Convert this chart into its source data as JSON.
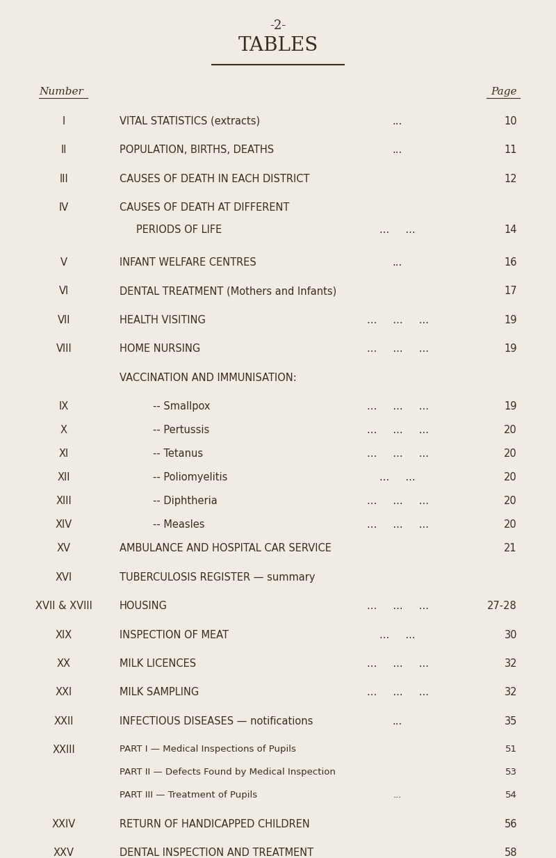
{
  "bg_color": "#f0ece4",
  "text_color": "#3d2b1f",
  "page_num": "-2-",
  "title": "TABLES",
  "col_number_label": "Number",
  "col_page_label": "Page",
  "entries": [
    {
      "number": "I",
      "desc1": "VITAL STATISTICS (extracts)",
      "desc2": "",
      "desc3": "",
      "dots1": "...",
      "dots2": "",
      "dots3": "",
      "page1": "10",
      "page2": "",
      "page3": "",
      "indent": 0,
      "group": false
    },
    {
      "number": "II",
      "desc1": "POPULATION, BIRTHS, DEATHS",
      "desc2": "",
      "desc3": "",
      "dots1": "...",
      "dots2": "",
      "dots3": "",
      "page1": "11",
      "page2": "",
      "page3": "",
      "indent": 0,
      "group": false
    },
    {
      "number": "III",
      "desc1": "CAUSES OF DEATH IN EACH DISTRICT",
      "desc2": "",
      "desc3": "",
      "dots1": "",
      "dots2": "",
      "dots3": "",
      "page1": "12",
      "page2": "",
      "page3": "",
      "indent": 0,
      "group": false
    },
    {
      "number": "IV",
      "desc1": "CAUSES OF DEATH AT DIFFERENT",
      "desc2": "PERIODS OF LIFE",
      "desc3": "",
      "dots1": "",
      "dots2": "...     ...",
      "dots3": "",
      "page1": "",
      "page2": "14",
      "page3": "",
      "indent": 0,
      "group": false
    },
    {
      "number": "V",
      "desc1": "INFANT WELFARE CENTRES",
      "desc2": "",
      "desc3": "",
      "dots1": "...",
      "dots2": "",
      "dots3": "",
      "page1": "16",
      "page2": "",
      "page3": "",
      "indent": 0,
      "group": false
    },
    {
      "number": "VI",
      "desc1": "DENTAL TREATMENT (Mothers and Infants)",
      "desc2": "",
      "desc3": "",
      "dots1": "",
      "dots2": "",
      "dots3": "",
      "page1": "17",
      "page2": "",
      "page3": "",
      "indent": 0,
      "group": false
    },
    {
      "number": "VII",
      "desc1": "HEALTH VISITING",
      "desc2": "",
      "desc3": "",
      "dots1": "...     ...     ...",
      "dots2": "",
      "dots3": "",
      "page1": "19",
      "page2": "",
      "page3": "",
      "indent": 0,
      "group": false
    },
    {
      "number": "VIII",
      "desc1": "HOME NURSING",
      "desc2": "",
      "desc3": "",
      "dots1": "...     ...     ...",
      "dots2": "",
      "dots3": "",
      "page1": "19",
      "page2": "",
      "page3": "",
      "indent": 0,
      "group": false
    },
    {
      "number": "",
      "desc1": "VACCINATION AND IMMUNISATION:",
      "desc2": "",
      "desc3": "",
      "dots1": "",
      "dots2": "",
      "dots3": "",
      "page1": "",
      "page2": "",
      "page3": "",
      "indent": 0,
      "group": false
    },
    {
      "number": "IX",
      "desc1": "-- Smallpox",
      "desc2": "",
      "desc3": "",
      "dots1": "...     ...     ...",
      "dots2": "",
      "dots3": "",
      "page1": "19",
      "page2": "",
      "page3": "",
      "indent": 1,
      "group": true
    },
    {
      "number": "X",
      "desc1": "-- Pertussis",
      "desc2": "",
      "desc3": "",
      "dots1": "...     ...     ...",
      "dots2": "",
      "dots3": "",
      "page1": "20",
      "page2": "",
      "page3": "",
      "indent": 1,
      "group": true
    },
    {
      "number": "XI",
      "desc1": "-- Tetanus",
      "desc2": "",
      "desc3": "",
      "dots1": "...     ...     ...",
      "dots2": "",
      "dots3": "",
      "page1": "20",
      "page2": "",
      "page3": "",
      "indent": 1,
      "group": true
    },
    {
      "number": "XII",
      "desc1": "-- Poliomyelitis",
      "desc2": "",
      "desc3": "",
      "dots1": "...     ...",
      "dots2": "",
      "dots3": "",
      "page1": "20",
      "page2": "",
      "page3": "",
      "indent": 1,
      "group": true
    },
    {
      "number": "XIII",
      "desc1": "-- Diphtheria",
      "desc2": "",
      "desc3": "",
      "dots1": "...     ...     ...",
      "dots2": "",
      "dots3": "",
      "page1": "20",
      "page2": "",
      "page3": "",
      "indent": 1,
      "group": true
    },
    {
      "number": "XIV",
      "desc1": "-- Measles",
      "desc2": "",
      "desc3": "",
      "dots1": "...     ...     ...",
      "dots2": "",
      "dots3": "",
      "page1": "20",
      "page2": "",
      "page3": "",
      "indent": 1,
      "group": true
    },
    {
      "number": "XV",
      "desc1": "AMBULANCE AND HOSPITAL CAR SERVICE",
      "desc2": "",
      "desc3": "",
      "dots1": "",
      "dots2": "",
      "dots3": "",
      "page1": "21",
      "page2": "",
      "page3": "",
      "indent": 0,
      "group": false
    },
    {
      "number": "XVI",
      "desc1": "TUBERCULOSIS REGISTER — summary",
      "desc2": "",
      "desc3": "",
      "dots1": "",
      "dots2": "",
      "dots3": "",
      "page1": "",
      "page2": "",
      "page3": "",
      "indent": 0,
      "group": false
    },
    {
      "number": "XVII & XVIII",
      "desc1": "HOUSING",
      "desc2": "",
      "desc3": "",
      "dots1": "...     ...     ...",
      "dots2": "",
      "dots3": "",
      "page1": "27-28",
      "page2": "",
      "page3": "",
      "indent": 0,
      "group": false
    },
    {
      "number": "XIX",
      "desc1": "INSPECTION OF MEAT",
      "desc2": "",
      "desc3": "",
      "dots1": "...     ...",
      "dots2": "",
      "dots3": "",
      "page1": "30",
      "page2": "",
      "page3": "",
      "indent": 0,
      "group": false
    },
    {
      "number": "XX",
      "desc1": "MILK LICENCES",
      "desc2": "",
      "desc3": "",
      "dots1": "...     ...     ...",
      "dots2": "",
      "dots3": "",
      "page1": "32",
      "page2": "",
      "page3": "",
      "indent": 0,
      "group": false
    },
    {
      "number": "XXI",
      "desc1": "MILK SAMPLING",
      "desc2": "",
      "desc3": "",
      "dots1": "...     ...     ...",
      "dots2": "",
      "dots3": "",
      "page1": "32",
      "page2": "",
      "page3": "",
      "indent": 0,
      "group": false
    },
    {
      "number": "XXII",
      "desc1": "INFECTIOUS DISEASES — notifications",
      "desc2": "",
      "desc3": "",
      "dots1": "...",
      "dots2": "",
      "dots3": "",
      "page1": "35",
      "page2": "",
      "page3": "",
      "indent": 0,
      "group": false
    },
    {
      "number": "XXIII",
      "desc1": "PART I — Medical Inspections of Pupils",
      "desc2": "PART II — Defects Found by Medical Inspection",
      "desc3": "PART III — Treatment of Pupils",
      "dots1": "",
      "dots2": "",
      "dots3": "...",
      "page1": "51",
      "page2": "53",
      "page3": "54",
      "indent": 0,
      "group": false
    },
    {
      "number": "XXIV",
      "desc1": "RETURN OF HANDICAPPED CHILDREN",
      "desc2": "",
      "desc3": "",
      "dots1": "",
      "dots2": "",
      "dots3": "",
      "page1": "56",
      "page2": "",
      "page3": "",
      "indent": 0,
      "group": false
    },
    {
      "number": "XXV",
      "desc1": "DENTAL INSPECTION AND TREATMENT",
      "desc2": "",
      "desc3": "",
      "dots1": "",
      "dots2": "",
      "dots3": "",
      "page1": "58",
      "page2": "",
      "page3": "",
      "indent": 0,
      "group": false
    }
  ],
  "font_size_title": 20,
  "font_size_pagenum": 13,
  "font_size_header": 11,
  "font_size_body": 10.5,
  "font_size_small": 9.5
}
